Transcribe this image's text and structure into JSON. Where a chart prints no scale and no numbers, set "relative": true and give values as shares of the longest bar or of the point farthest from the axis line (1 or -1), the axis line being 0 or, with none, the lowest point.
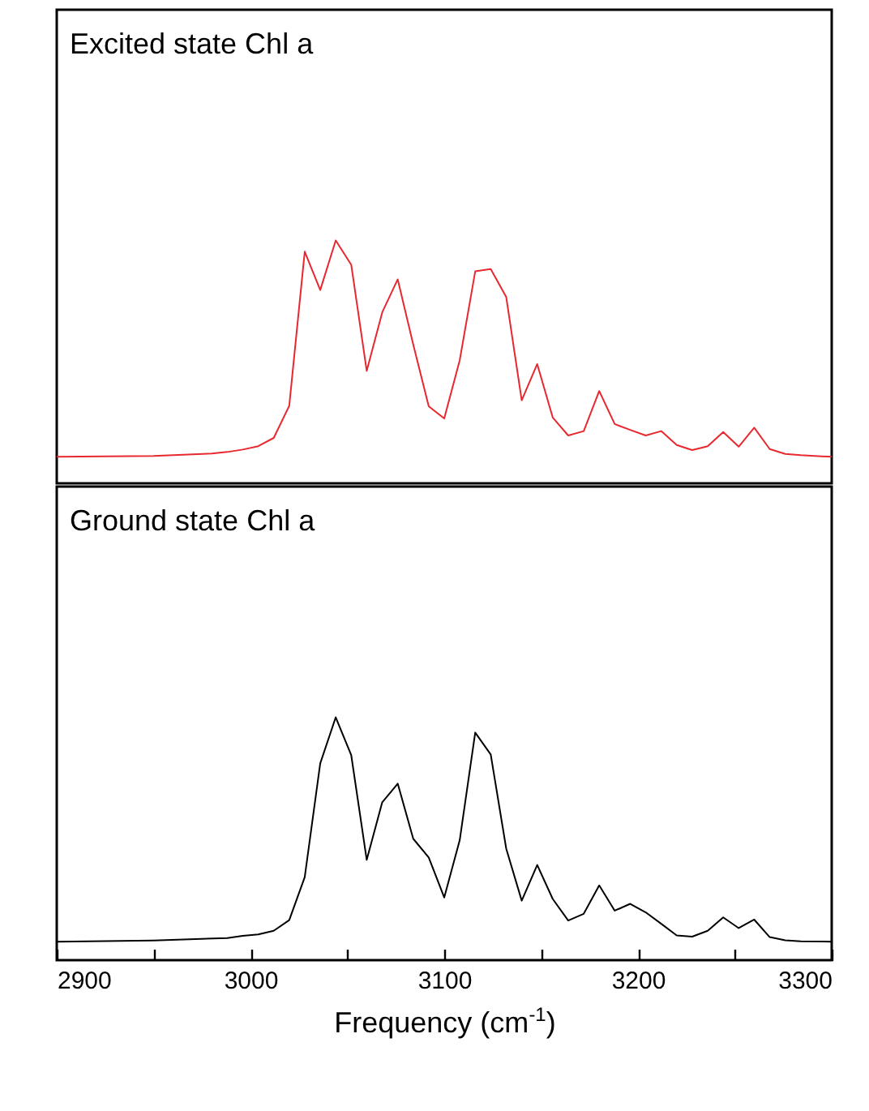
{
  "chart_data": [
    {
      "type": "line",
      "relative": true,
      "tick_labels": false,
      "xlim": [
        2900,
        3300
      ],
      "annotations": [
        "Excited state Chl a"
      ],
      "x": [
        2900,
        2950,
        2980,
        2988,
        2996,
        3004,
        3012,
        3020,
        3028,
        3036,
        3044,
        3052,
        3060,
        3068,
        3076,
        3084,
        3092,
        3100,
        3108,
        3116,
        3124,
        3132,
        3140,
        3148,
        3156,
        3164,
        3172,
        3180,
        3188,
        3196,
        3204,
        3212,
        3220,
        3228,
        3236,
        3244,
        3252,
        3260,
        3268,
        3276,
        3284,
        3300
      ],
      "series": [
        {
          "color": "#e8282f",
          "values": [
            0.109,
            0.113,
            0.123,
            0.129,
            0.139,
            0.153,
            0.187,
            0.319,
            0.954,
            0.796,
            1,
            0.9,
            0.463,
            0.704,
            0.84,
            0.572,
            0.317,
            0.267,
            0.507,
            0.873,
            0.882,
            0.767,
            0.342,
            0.491,
            0.271,
            0.197,
            0.215,
            0.38,
            0.244,
            0.22,
            0.197,
            0.215,
            0.158,
            0.137,
            0.153,
            0.211,
            0.151,
            0.229,
            0.141,
            0.121,
            0.116,
            0.109
          ]
        }
      ]
    },
    {
      "type": "line",
      "relative": true,
      "tick_labels": "x",
      "xlim": [
        2900,
        3300
      ],
      "xlabel": "Frequency (cm$^{-1}$)",
      "annotations": [
        "Ground state Chl a"
      ],
      "xticks": [
        2900,
        {
          "value": 2950,
          "label": null
        },
        3000,
        {
          "value": 3050,
          "label": null
        },
        3100,
        {
          "value": 3150,
          "label": null
        },
        3200,
        {
          "value": 3250,
          "label": null
        },
        3300
      ],
      "x": [
        2900,
        2950,
        2988,
        2996,
        3004,
        3012,
        3020,
        3028,
        3036,
        3044,
        3052,
        3060,
        3068,
        3076,
        3084,
        3092,
        3100,
        3108,
        3116,
        3124,
        3132,
        3140,
        3148,
        3156,
        3164,
        3172,
        3180,
        3188,
        3196,
        3204,
        3212,
        3220,
        3228,
        3236,
        3244,
        3252,
        3260,
        3268,
        3276,
        3284,
        3300
      ],
      "series": [
        {
          "color": "#000000",
          "values": [
            0.076,
            0.081,
            0.091,
            0.1,
            0.106,
            0.121,
            0.165,
            0.342,
            0.81,
            1,
            0.844,
            0.413,
            0.65,
            0.727,
            0.5,
            0.423,
            0.258,
            0.494,
            0.937,
            0.847,
            0.459,
            0.245,
            0.392,
            0.252,
            0.163,
            0.191,
            0.308,
            0.204,
            0.232,
            0.197,
            0.15,
            0.102,
            0.097,
            0.121,
            0.176,
            0.132,
            0.167,
            0.095,
            0.082,
            0.078,
            0.076
          ]
        }
      ]
    }
  ]
}
